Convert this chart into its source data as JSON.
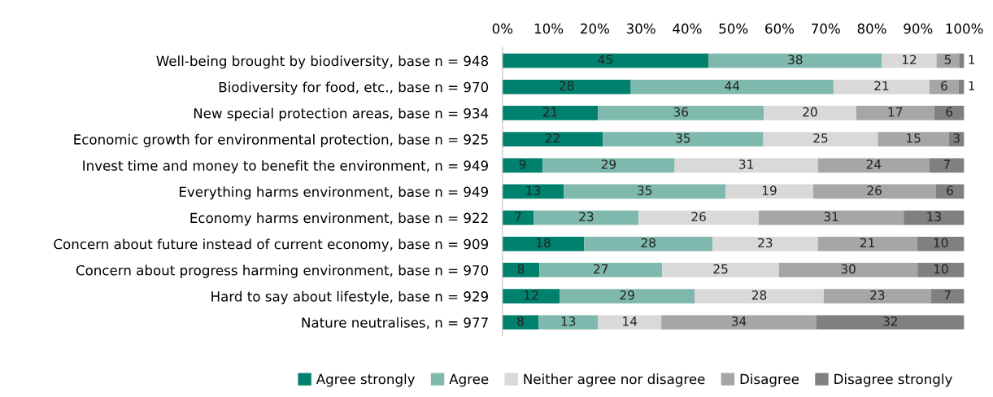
{
  "chart_data": {
    "type": "bar",
    "orientation": "horizontal",
    "stacked": true,
    "legend": "bottom",
    "grid": false,
    "categories": [
      "Well-being brought by biodiversity, base n = 948",
      "Biodiversity for food, etc., base n = 970",
      "New special protection areas, base n = 934",
      "Economic growth for environmental protection, base n = 925",
      "Invest time and money to benefit the environment, n = 949",
      "Everything harms environment, base n = 949",
      "Economy harms environment, base n = 922",
      "Concern about future instead of current economy, base n = 909",
      "Concern about progress harming environment, base n = 970",
      "Hard to say about lifestyle, base n = 929",
      "Nature neutralises, n = 977"
    ],
    "xlim": [
      0,
      100
    ],
    "xticks": [
      {
        "value": 0,
        "label": "0%"
      },
      {
        "value": 10,
        "label": "10%"
      },
      {
        "value": 20,
        "label": "20%"
      },
      {
        "value": 30,
        "label": "30%"
      },
      {
        "value": 40,
        "label": "40%"
      },
      {
        "value": 50,
        "label": "50%"
      },
      {
        "value": 60,
        "label": "60%"
      },
      {
        "value": 70,
        "label": "70%"
      },
      {
        "value": 80,
        "label": "80%"
      },
      {
        "value": 90,
        "label": "90%"
      },
      {
        "value": 100,
        "label": "100%"
      }
    ],
    "series": [
      {
        "name": "Agree strongly",
        "color": "#00816d",
        "values": [
          44.6,
          27.8,
          20.7,
          21.7,
          8.7,
          13.3,
          6.8,
          17.7,
          8.0,
          12.4,
          7.8
        ],
        "value_labels": [
          "45",
          "28",
          "21",
          "22",
          "9",
          "13",
          "7",
          "18",
          "8",
          "12",
          "8"
        ]
      },
      {
        "name": "Agree",
        "color": "#7fb9ad",
        "values": [
          37.6,
          43.9,
          35.9,
          34.8,
          28.6,
          35.0,
          22.7,
          27.8,
          26.6,
          29.2,
          12.9
        ],
        "value_labels": [
          "38",
          "44",
          "36",
          "35",
          "29",
          "35",
          "23",
          "28",
          "27",
          "29",
          "13"
        ]
      },
      {
        "name": "Neither agree nor disagree",
        "color": "#d9d9d9",
        "values": [
          11.8,
          20.8,
          20.0,
          24.8,
          31.0,
          19.0,
          26.0,
          22.8,
          25.3,
          28.0,
          13.7
        ],
        "value_labels": [
          "12",
          "21",
          "20",
          "25",
          "31",
          "19",
          "26",
          "23",
          "25",
          "28",
          "14"
        ]
      },
      {
        "name": "Disagree",
        "color": "#a6a6a8",
        "values": [
          4.9,
          6.3,
          16.9,
          15.4,
          24.2,
          26.5,
          31.4,
          21.5,
          30.0,
          23.2,
          33.6
        ],
        "value_labels": [
          "5",
          "6",
          "17",
          "15",
          "24",
          "26",
          "31",
          "21",
          "30",
          "23",
          "34"
        ]
      },
      {
        "name": "Disagree strongly",
        "color": "#808083",
        "values": [
          1.1,
          1.2,
          6.5,
          3.3,
          7.5,
          6.2,
          13.1,
          10.2,
          10.1,
          7.2,
          32.0
        ],
        "value_labels": [
          "1",
          "1",
          "6",
          "3",
          "7",
          "6",
          "13",
          "10",
          "10",
          "7",
          "32"
        ]
      }
    ]
  }
}
